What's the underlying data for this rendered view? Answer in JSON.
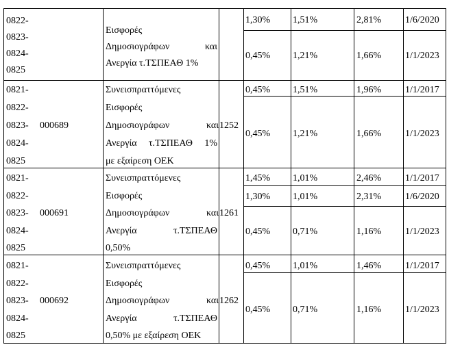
{
  "rows": [
    {
      "codes": [
        "0822-",
        "0823-",
        "0824-",
        "0825"
      ],
      "code_id": "",
      "desc_lines": [
        "Εισφορές",
        "Δημοσιογράφων και",
        "Ανεργία τ.ΤΣΠΕΑΘ 1%"
      ],
      "number": "",
      "rates": [
        {
          "a": "1,30%",
          "b": "1,51%",
          "total": "2,81%",
          "date": "1/6/2020"
        },
        {
          "a": "0,45%",
          "b": "1,21%",
          "total": "1,66%",
          "date": "1/1/2023"
        }
      ]
    },
    {
      "codes": [
        "0821-",
        "0822-",
        "0823-",
        "0824-",
        "0825"
      ],
      "code_id": "000689",
      "desc_lines": [
        "Συνεισπραττόμενες",
        "Εισφορές",
        "Δημοσιογράφων και",
        "Ανεργία τ.ΤΣΠΕΑΘ 1%",
        "με εξαίρεση ΟΕΚ"
      ],
      "number": "1252",
      "rates": [
        {
          "a": "0,45%",
          "b": "1,51%",
          "total": "1,96%",
          "date": "1/1/2017"
        },
        {
          "a": "0,45%",
          "b": "1,21%",
          "total": "1,66%",
          "date": "1/1/2023"
        }
      ]
    },
    {
      "codes": [
        "0821-",
        "0822-",
        "0823-",
        "0824-",
        "0825"
      ],
      "code_id": "000691",
      "desc_lines": [
        "Συνεισπραττόμενες",
        "Εισφορές",
        "Δημοσιογράφων και",
        "Ανεργία τ.ΤΣΠΕΑΘ",
        "0,50%"
      ],
      "number": "1261",
      "rates": [
        {
          "a": "1,45%",
          "b": "1,01%",
          "total": "2,46%",
          "date": "1/1/2017"
        },
        {
          "a": "1,30%",
          "b": "1,01%",
          "total": "2,31%",
          "date": "1/6/2020"
        },
        {
          "a": "0,45%",
          "b": "0,71%",
          "total": "1,16%",
          "date": "1/1/2023"
        }
      ]
    },
    {
      "codes": [
        "0821-",
        "0822-",
        "0823-",
        "0824-",
        "0825"
      ],
      "code_id": "000692",
      "desc_lines": [
        "Συνεισπραττόμενες",
        "Εισφορές",
        "Δημοσιογράφων και",
        "Ανεργία τ.ΤΣΠΕΑΘ",
        "0,50% με εξαίρεση ΟΕΚ"
      ],
      "number": "1262",
      "rates": [
        {
          "a": "0,45%",
          "b": "1,01%",
          "total": "1,46%",
          "date": "1/1/2017"
        },
        {
          "a": "0,45%",
          "b": "0,71%",
          "total": "1,16%",
          "date": "1/1/2023"
        }
      ]
    }
  ]
}
